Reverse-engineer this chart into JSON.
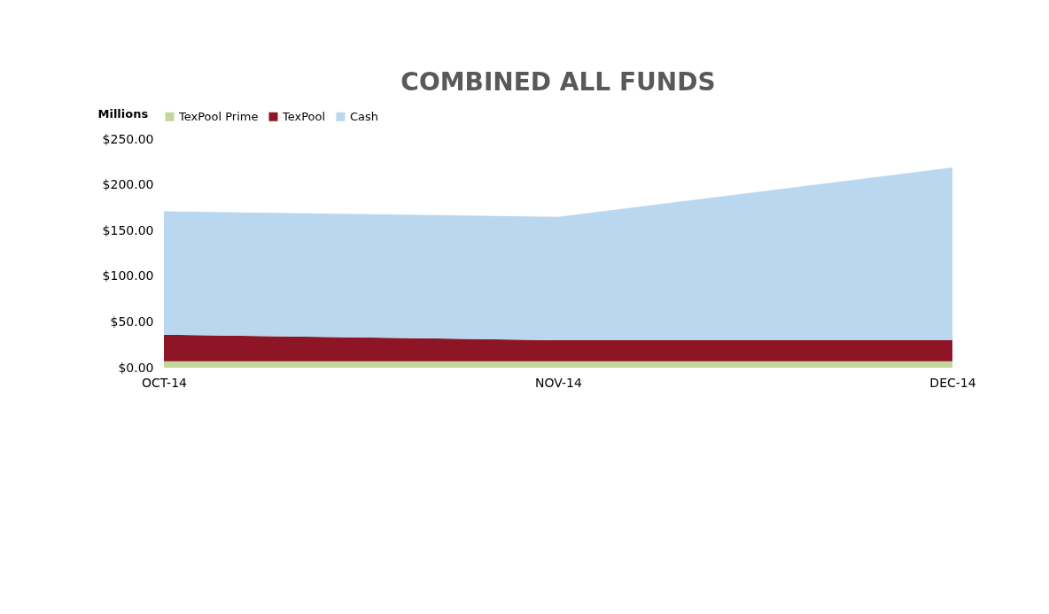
{
  "chart_data": {
    "type": "area",
    "title": "COMBINED ALL FUNDS",
    "ylabel": "Millions",
    "stacked": true,
    "categories": [
      "OCT-14",
      "NOV-14",
      "DEC-14"
    ],
    "series": [
      {
        "name": "TexPool Prime",
        "color": "#c3d69b",
        "values": [
          7,
          7,
          7
        ]
      },
      {
        "name": "TexPool",
        "color": "#8e1525",
        "values": [
          29,
          23,
          23
        ]
      },
      {
        "name": "Cash",
        "color": "#b9d7ef",
        "values": [
          135,
          135,
          189
        ]
      }
    ],
    "ylim": [
      0,
      250
    ],
    "yticks": [
      {
        "value": 0,
        "label": "$0.00"
      },
      {
        "value": 50,
        "label": "$50.00"
      },
      {
        "value": 100,
        "label": "$100.00"
      },
      {
        "value": 150,
        "label": "$150.00"
      },
      {
        "value": 200,
        "label": "$200.00"
      },
      {
        "value": 250,
        "label": "$250.00"
      }
    ],
    "grid": false,
    "legend": "top"
  }
}
